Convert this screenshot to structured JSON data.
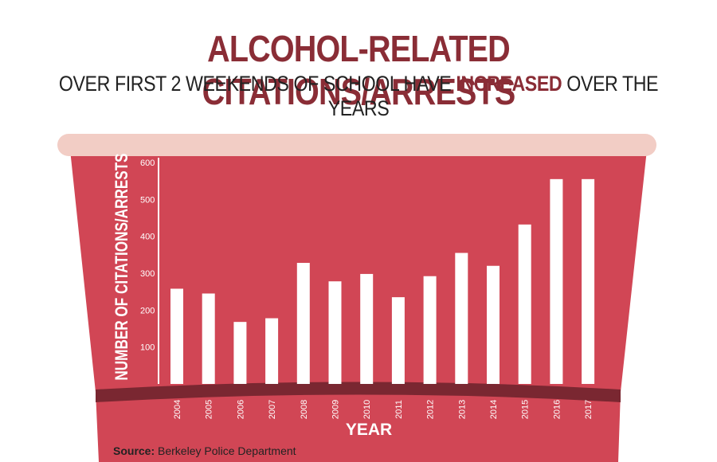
{
  "header": {
    "title": "ALCOHOL-RELATED CITATIONS/ARRESTS",
    "subtitle_before": "OVER FIRST 2 WEEKENDS OF SCHOOL HAVE ",
    "subtitle_highlight": "INCREASED",
    "subtitle_after": " OVER THE YEARS"
  },
  "source": {
    "label": "Source:",
    "text": " Berkeley Police Department"
  },
  "colors": {
    "cup": "#d14655",
    "rim": "#f2cdc5",
    "band": "#7a2731",
    "title": "#8a2d36",
    "bar": "#ffffff"
  },
  "chart_data": {
    "type": "bar",
    "title": "ALCOHOL-RELATED CITATIONS/ARRESTS",
    "xlabel": "YEAR",
    "ylabel": "NUMBER OF CITATIONS/ARRESTS",
    "categories": [
      "2004",
      "2005",
      "2006",
      "2007",
      "2008",
      "2009",
      "2010",
      "2011",
      "2012",
      "2013",
      "2014",
      "2015",
      "2016",
      "2017"
    ],
    "values": [
      258,
      245,
      168,
      178,
      328,
      278,
      298,
      235,
      292,
      355,
      320,
      432,
      555,
      555
    ],
    "ylim": [
      0,
      600
    ],
    "yticks": [
      100,
      200,
      300,
      400,
      500,
      600
    ],
    "grid": false,
    "legend": "none"
  }
}
